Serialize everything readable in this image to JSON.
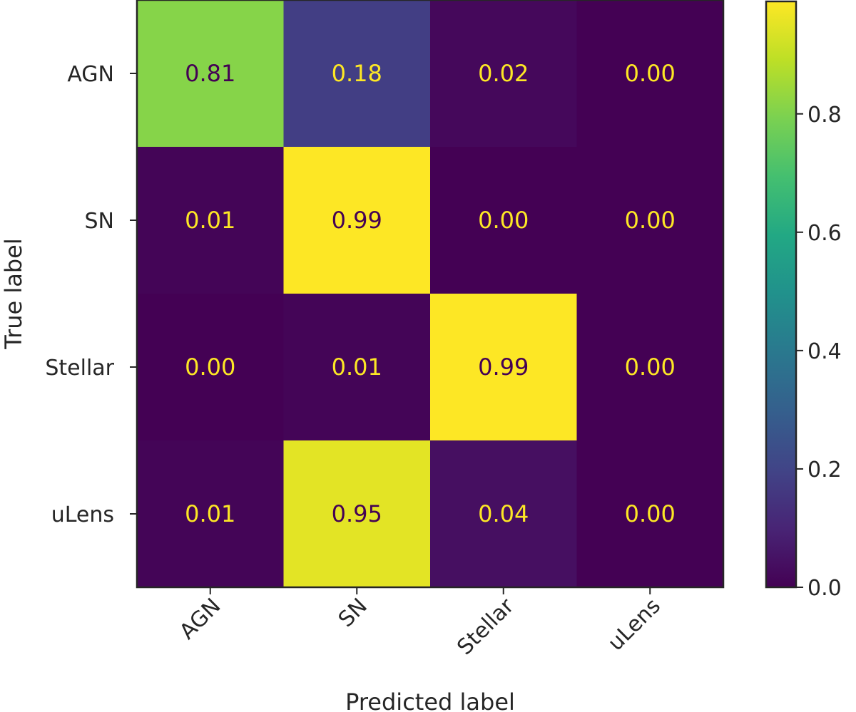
{
  "chart_data": {
    "type": "heatmap",
    "title": "",
    "xlabel": "Predicted label",
    "ylabel": "True label",
    "x_categories": [
      "AGN",
      "SN",
      "Stellar",
      "uLens"
    ],
    "y_categories": [
      "AGN",
      "SN",
      "Stellar",
      "uLens"
    ],
    "values": [
      [
        0.81,
        0.18,
        0.02,
        0.0
      ],
      [
        0.01,
        0.99,
        0.0,
        0.0
      ],
      [
        0.0,
        0.01,
        0.99,
        0.0
      ],
      [
        0.01,
        0.95,
        0.04,
        0.0
      ]
    ],
    "cell_labels": [
      [
        "0.81",
        "0.18",
        "0.02",
        "0.00"
      ],
      [
        "0.01",
        "0.99",
        "0.00",
        "0.00"
      ],
      [
        "0.00",
        "0.01",
        "0.99",
        "0.00"
      ],
      [
        "0.01",
        "0.95",
        "0.04",
        "0.00"
      ]
    ],
    "colormap": "viridis",
    "colorbar": {
      "range": [
        0.0,
        0.99
      ],
      "ticks": [
        0.0,
        0.2,
        0.4,
        0.6,
        0.8
      ],
      "tick_labels": [
        "0.0",
        "0.2",
        "0.4",
        "0.6",
        "0.8"
      ]
    },
    "x_tick_rotation": 45,
    "grid": false
  }
}
